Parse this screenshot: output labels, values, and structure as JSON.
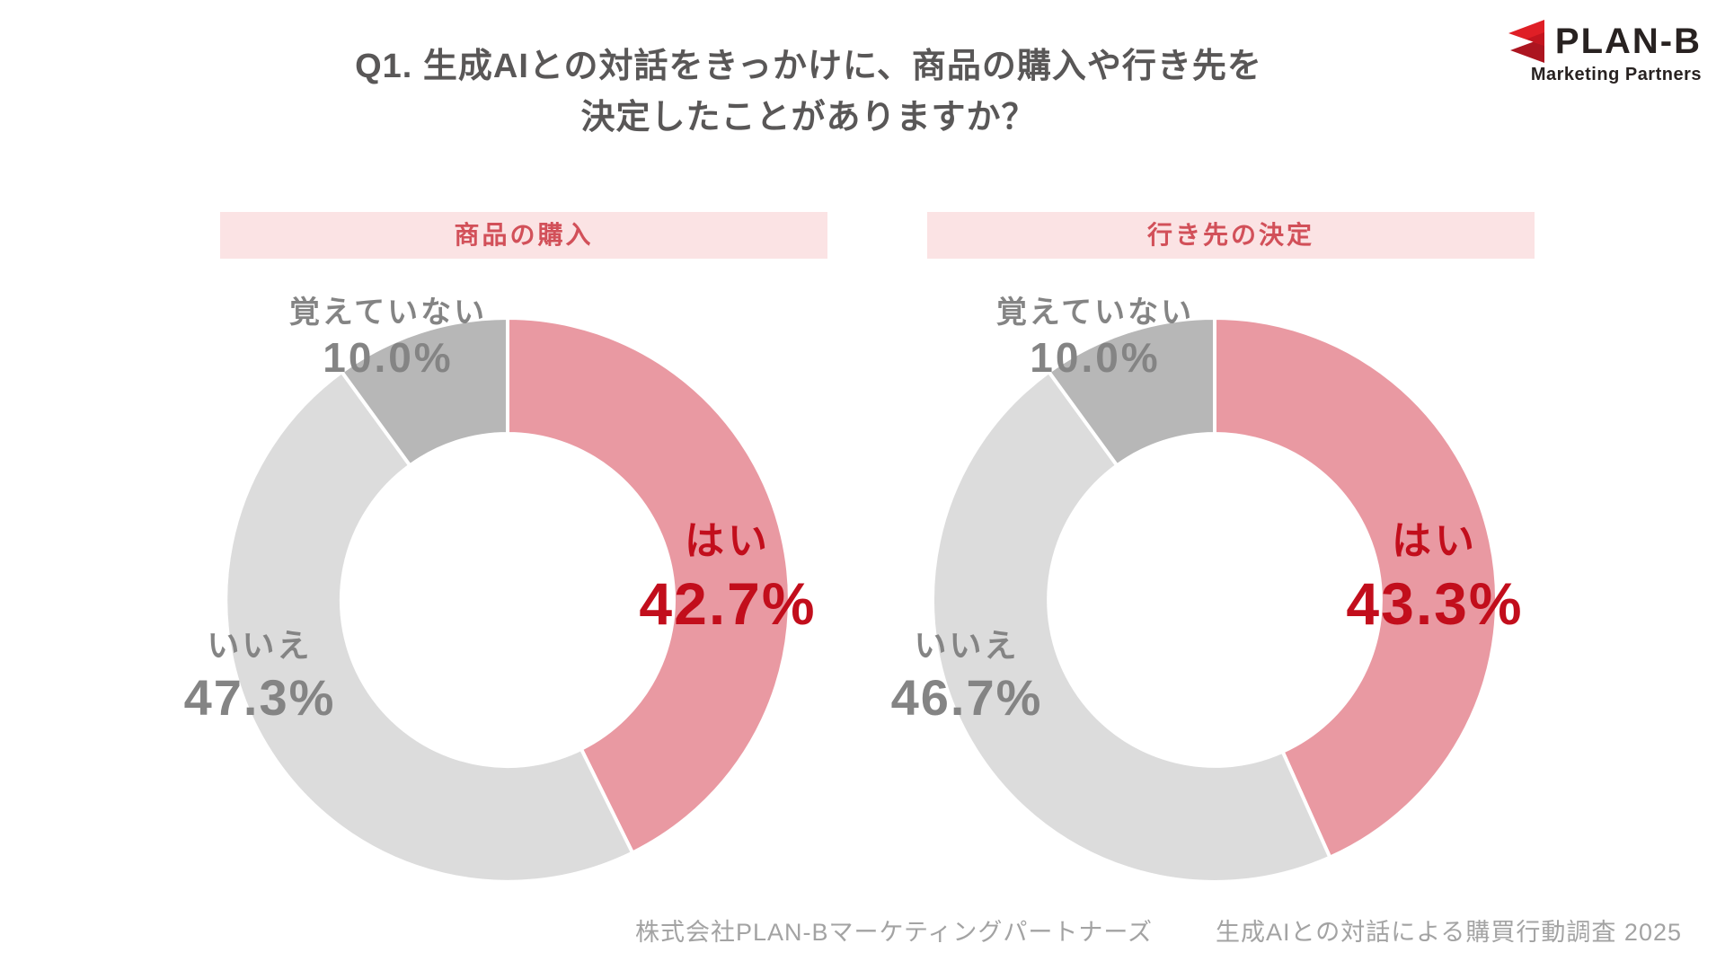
{
  "title": {
    "line1": "Q1. 生成AIとの対話をきっかけに、商品の購入や行き先を",
    "line2": "決定したことがありますか？"
  },
  "logo": {
    "name": "PLAN-B",
    "subtitle": "Marketing Partners",
    "icon": "double-chevron-left-icon",
    "red": "#DF1F26",
    "red_dark": "#AC1520"
  },
  "charts": [
    {
      "header": "商品の購入",
      "segments": [
        {
          "label": "はい",
          "pct": "42.7%"
        },
        {
          "label": "いいえ",
          "pct": "47.3%"
        },
        {
          "label": "覚えていない",
          "pct": "10.0%"
        }
      ]
    },
    {
      "header": "行き先の決定",
      "segments": [
        {
          "label": "はい",
          "pct": "43.3%"
        },
        {
          "label": "いいえ",
          "pct": "46.7%"
        },
        {
          "label": "覚えていない",
          "pct": "10.0%"
        }
      ]
    }
  ],
  "chart_data": [
    {
      "type": "pie",
      "subtype": "donut",
      "title": "商品の購入",
      "labels": [
        "はい",
        "いいえ",
        "覚えていない"
      ],
      "values": [
        42.7,
        47.3,
        10.0
      ],
      "colors": [
        "#E999A2",
        "#DCDCDC",
        "#B7B7B7"
      ],
      "start_angle": "top",
      "direction": "clockwise",
      "inner_radius_ratio": 0.59,
      "legend_position": "labels-around-ring"
    },
    {
      "type": "pie",
      "subtype": "donut",
      "title": "行き先の決定",
      "labels": [
        "はい",
        "いいえ",
        "覚えていない"
      ],
      "values": [
        43.3,
        46.7,
        10.0
      ],
      "colors": [
        "#E999A2",
        "#DCDCDC",
        "#B7B7B7"
      ],
      "start_angle": "top",
      "direction": "clockwise",
      "inner_radius_ratio": 0.59,
      "legend_position": "labels-around-ring"
    }
  ],
  "footer": {
    "company": "株式会社PLAN-Bマーケティングパートナーズ",
    "survey": "生成AIとの対話による購買行動調査 2025"
  },
  "colors": {
    "accent_red_text": "#C20E1C",
    "header_text": "#D25059",
    "header_bg": "#FBE3E4",
    "segment_yes": "#E999A2",
    "segment_no": "#DCDCDC",
    "segment_dk": "#B7B7B7",
    "label_gray": "#848484",
    "title_gray": "#595757",
    "footer_gray": "#A3A3A3"
  }
}
